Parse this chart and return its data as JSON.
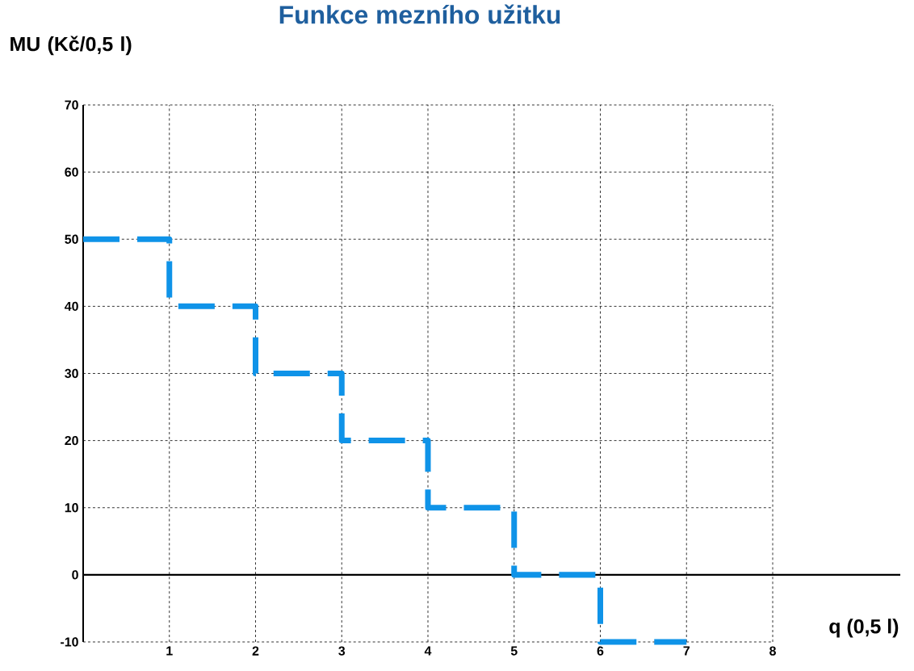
{
  "chart_data": {
    "type": "step",
    "title": "Funkce mezního užitku",
    "xlabel": "q (0,5 l)",
    "ylabel": "MU (Kč/0,5 l)",
    "x": [
      0,
      1,
      2,
      3,
      4,
      5,
      6,
      7
    ],
    "values": [
      50,
      40,
      30,
      20,
      10,
      0,
      -10,
      -10
    ],
    "color": "#0f93e8",
    "line_style": "dashed",
    "xlim": [
      0,
      8
    ],
    "xticks": [
      1,
      2,
      3,
      4,
      5,
      6,
      7,
      8
    ],
    "ylim": [
      -10,
      70
    ],
    "yticks": [
      -10,
      0,
      10,
      20,
      30,
      40,
      50,
      60,
      70
    ],
    "grid": true,
    "ref_lines": [
      {
        "axis": "y",
        "value": 0,
        "color": "#000000"
      }
    ]
  }
}
